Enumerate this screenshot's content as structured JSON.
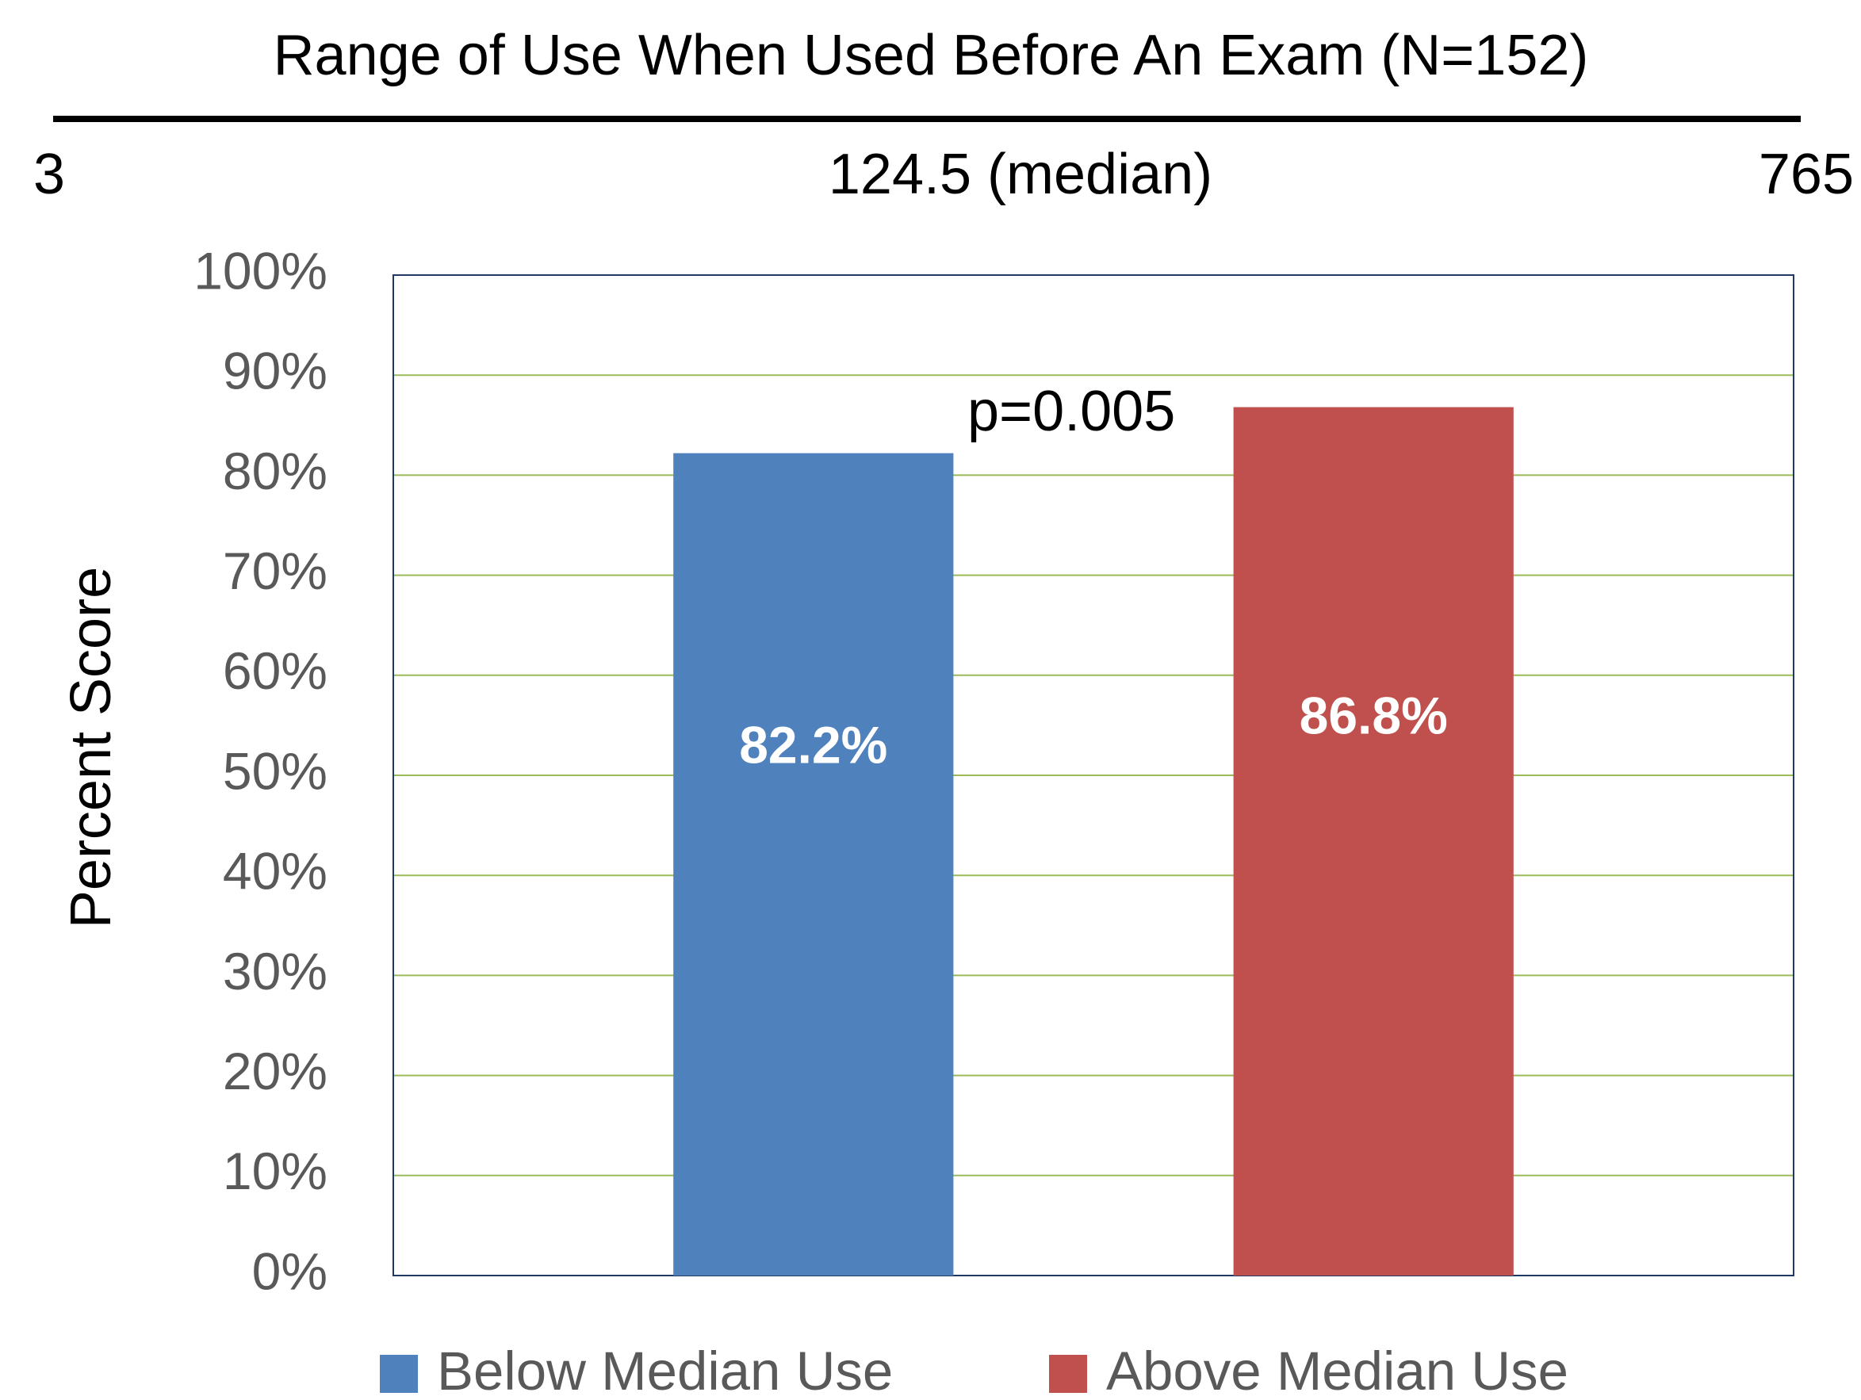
{
  "chart_data": {
    "type": "bar",
    "title": "Range of Use When Used Before An Exam (N=152)",
    "range": {
      "min": 3,
      "median": {
        "value": 124.5,
        "label": "124.5 (median)"
      },
      "max": 765
    },
    "annotation": "p=0.005",
    "y_label": "Percent Score",
    "categories": [
      null
    ],
    "series": [
      {
        "name": "Below Median Use",
        "color": "#4f81bd",
        "values": [
          82.2
        ],
        "value_labels": [
          "82.2%"
        ]
      },
      {
        "name": "Above Median Use",
        "color": "#c0504d",
        "values": [
          86.8
        ],
        "value_labels": [
          "86.8%"
        ]
      }
    ],
    "ylim": [
      0,
      100
    ],
    "yticks": [
      {
        "value": 0,
        "label": "0%"
      },
      {
        "value": 10,
        "label": "10%"
      },
      {
        "value": 20,
        "label": "20%"
      },
      {
        "value": 30,
        "label": "30%"
      },
      {
        "value": 40,
        "label": "40%"
      },
      {
        "value": 50,
        "label": "50%"
      },
      {
        "value": 60,
        "label": "60%"
      },
      {
        "value": 70,
        "label": "70%"
      },
      {
        "value": 80,
        "label": "80%"
      },
      {
        "value": 90,
        "label": "90%"
      },
      {
        "value": 100,
        "label": "100%"
      }
    ],
    "grid": true,
    "legend": "bottom"
  }
}
